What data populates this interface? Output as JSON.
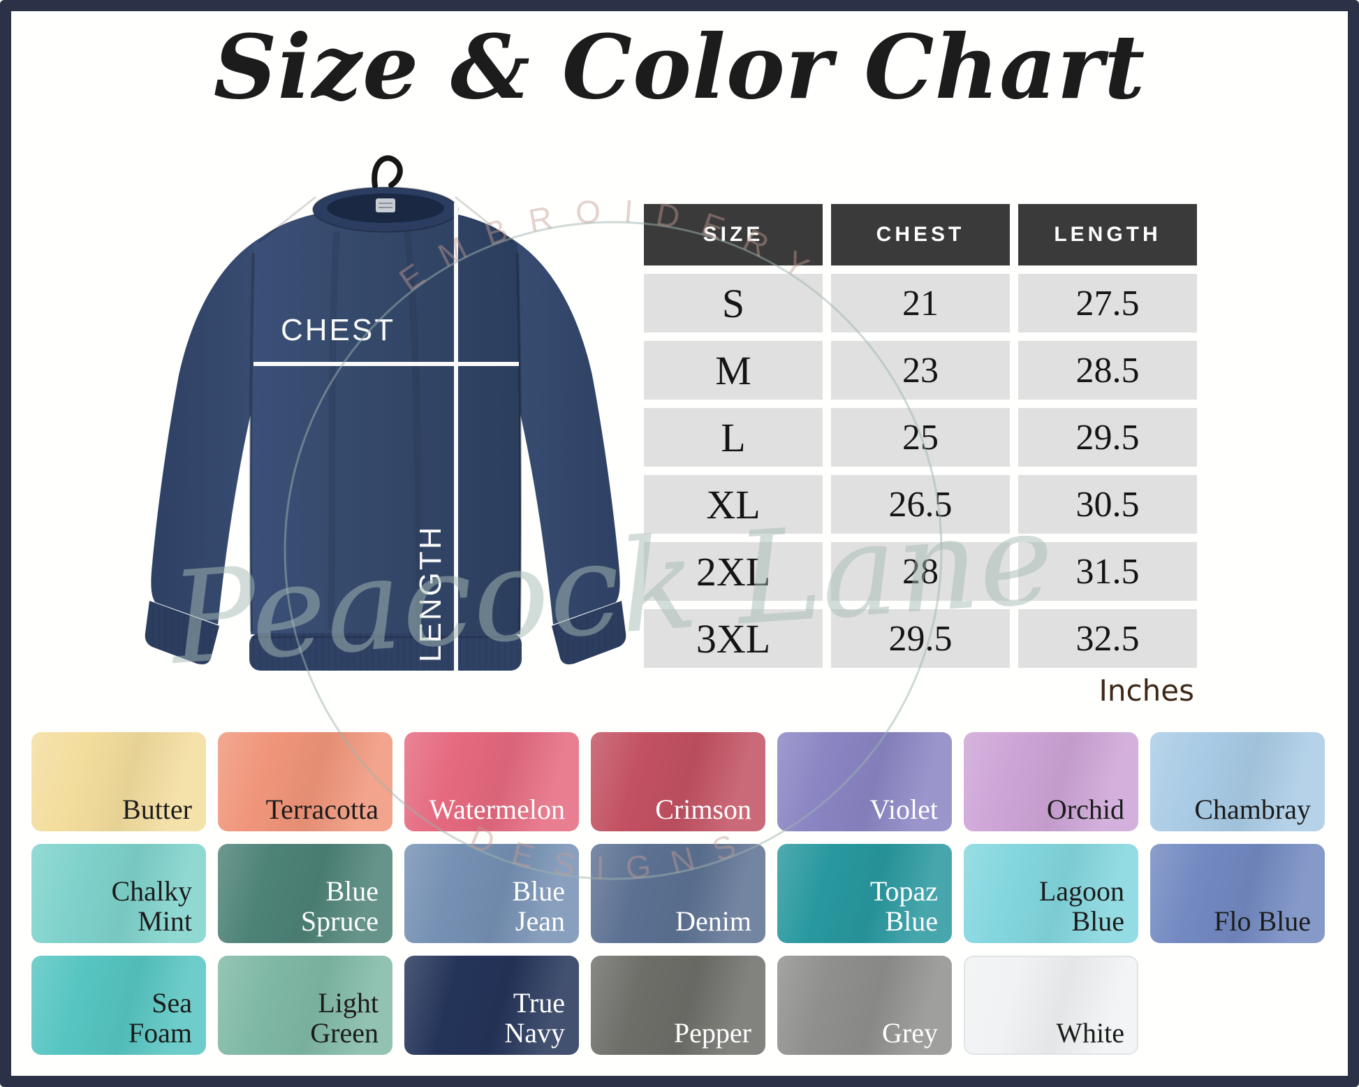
{
  "title": "Size & Color Chart",
  "size_table": {
    "headers": [
      "SIZE",
      "CHEST",
      "LENGTH"
    ],
    "rows": [
      [
        "S",
        "21",
        "27.5"
      ],
      [
        "M",
        "23",
        "28.5"
      ],
      [
        "L",
        "25",
        "29.5"
      ],
      [
        "XL",
        "26.5",
        "30.5"
      ],
      [
        "2XL",
        "28",
        "31.5"
      ],
      [
        "3XL",
        "29.5",
        "32.5"
      ]
    ],
    "units_label": "Inches"
  },
  "measurement_labels": {
    "chest": "CHEST",
    "length": "LENGTH"
  },
  "watermark": {
    "arc_top": "EMBROIDERY",
    "arc_bottom": "DESIGNS",
    "script": "Peacock Lane"
  },
  "colors": {
    "frame_border": "#2b3147",
    "table_header_bg": "#3a3a3a",
    "table_cell_bg": "#e0e0e0",
    "units_text": "#3f2817",
    "sweatshirt_navy": "#344869",
    "measure_line": "#fafafa"
  },
  "swatches": [
    {
      "name": "Butter",
      "label_lines": [
        "Butter"
      ],
      "color": "#f3dd9d",
      "text_color": "#1c1c1c"
    },
    {
      "name": "Terracotta",
      "label_lines": [
        "Terracotta"
      ],
      "color": "#f0957a",
      "text_color": "#1c1c1c"
    },
    {
      "name": "Watermelon",
      "label_lines": [
        "Watermelon"
      ],
      "color": "#e5697f",
      "text_color": "#ffffff"
    },
    {
      "name": "Crimson",
      "label_lines": [
        "Crimson"
      ],
      "color": "#c25162",
      "text_color": "#ffffff"
    },
    {
      "name": "Violet",
      "label_lines": [
        "Violet"
      ],
      "color": "#8a85c3",
      "text_color": "#ffffff"
    },
    {
      "name": "Orchid",
      "label_lines": [
        "Orchid"
      ],
      "color": "#cda4d6",
      "text_color": "#1c1c1c"
    },
    {
      "name": "Chambray",
      "label_lines": [
        "Chambray"
      ],
      "color": "#a9cbe5",
      "text_color": "#1c1c1c"
    },
    {
      "name": "Chalky Mint",
      "label_lines": [
        "Chalky",
        "Mint"
      ],
      "color": "#7ed2cb",
      "text_color": "#1c1c1c"
    },
    {
      "name": "Blue Spruce",
      "label_lines": [
        "Blue",
        "Spruce"
      ],
      "color": "#4d8277",
      "text_color": "#ffffff"
    },
    {
      "name": "Blue Jean",
      "label_lines": [
        "Blue",
        "Jean"
      ],
      "color": "#7590b3",
      "text_color": "#ffffff"
    },
    {
      "name": "Denim",
      "label_lines": [
        "Denim"
      ],
      "color": "#5c7192",
      "text_color": "#ffffff"
    },
    {
      "name": "Topaz Blue",
      "label_lines": [
        "Topaz",
        "Blue"
      ],
      "color": "#28989f",
      "text_color": "#ffffff"
    },
    {
      "name": "Lagoon Blue",
      "label_lines": [
        "Lagoon",
        "Blue"
      ],
      "color": "#83d6de",
      "text_color": "#1c1c1c"
    },
    {
      "name": "Flo Blue",
      "label_lines": [
        "Flo Blue"
      ],
      "color": "#7289c1",
      "text_color": "#1c1c1c"
    },
    {
      "name": "Sea Foam",
      "label_lines": [
        "Sea",
        "Foam"
      ],
      "color": "#56c5c1",
      "text_color": "#1c1c1c"
    },
    {
      "name": "Light Green",
      "label_lines": [
        "Light",
        "Green"
      ],
      "color": "#7fb8a5",
      "text_color": "#1c1c1c"
    },
    {
      "name": "True Navy",
      "label_lines": [
        "True",
        "Navy"
      ],
      "color": "#243459",
      "text_color": "#ffffff"
    },
    {
      "name": "Pepper",
      "label_lines": [
        "Pepper"
      ],
      "color": "#6e6e69",
      "text_color": "#ffffff"
    },
    {
      "name": "Grey",
      "label_lines": [
        "Grey"
      ],
      "color": "#8f908e",
      "text_color": "#ffffff"
    },
    {
      "name": "White",
      "label_lines": [
        "White"
      ],
      "color": "#f0f2f3",
      "text_color": "#1c1c1c",
      "border": "#e0e3e5"
    }
  ],
  "chart_data": {
    "type": "table",
    "title": "Size & Color Chart",
    "columns": [
      "SIZE",
      "CHEST",
      "LENGTH"
    ],
    "rows": [
      [
        "S",
        21,
        27.5
      ],
      [
        "M",
        23,
        28.5
      ],
      [
        "L",
        25,
        29.5
      ],
      [
        "XL",
        26.5,
        30.5
      ],
      [
        "2XL",
        28,
        31.5
      ],
      [
        "3XL",
        29.5,
        32.5
      ]
    ],
    "units": "Inches",
    "color_options": [
      "Butter",
      "Terracotta",
      "Watermelon",
      "Crimson",
      "Violet",
      "Orchid",
      "Chambray",
      "Chalky Mint",
      "Blue Spruce",
      "Blue Jean",
      "Denim",
      "Topaz Blue",
      "Lagoon Blue",
      "Flo Blue",
      "Sea Foam",
      "Light Green",
      "True Navy",
      "Pepper",
      "Grey",
      "White"
    ]
  }
}
